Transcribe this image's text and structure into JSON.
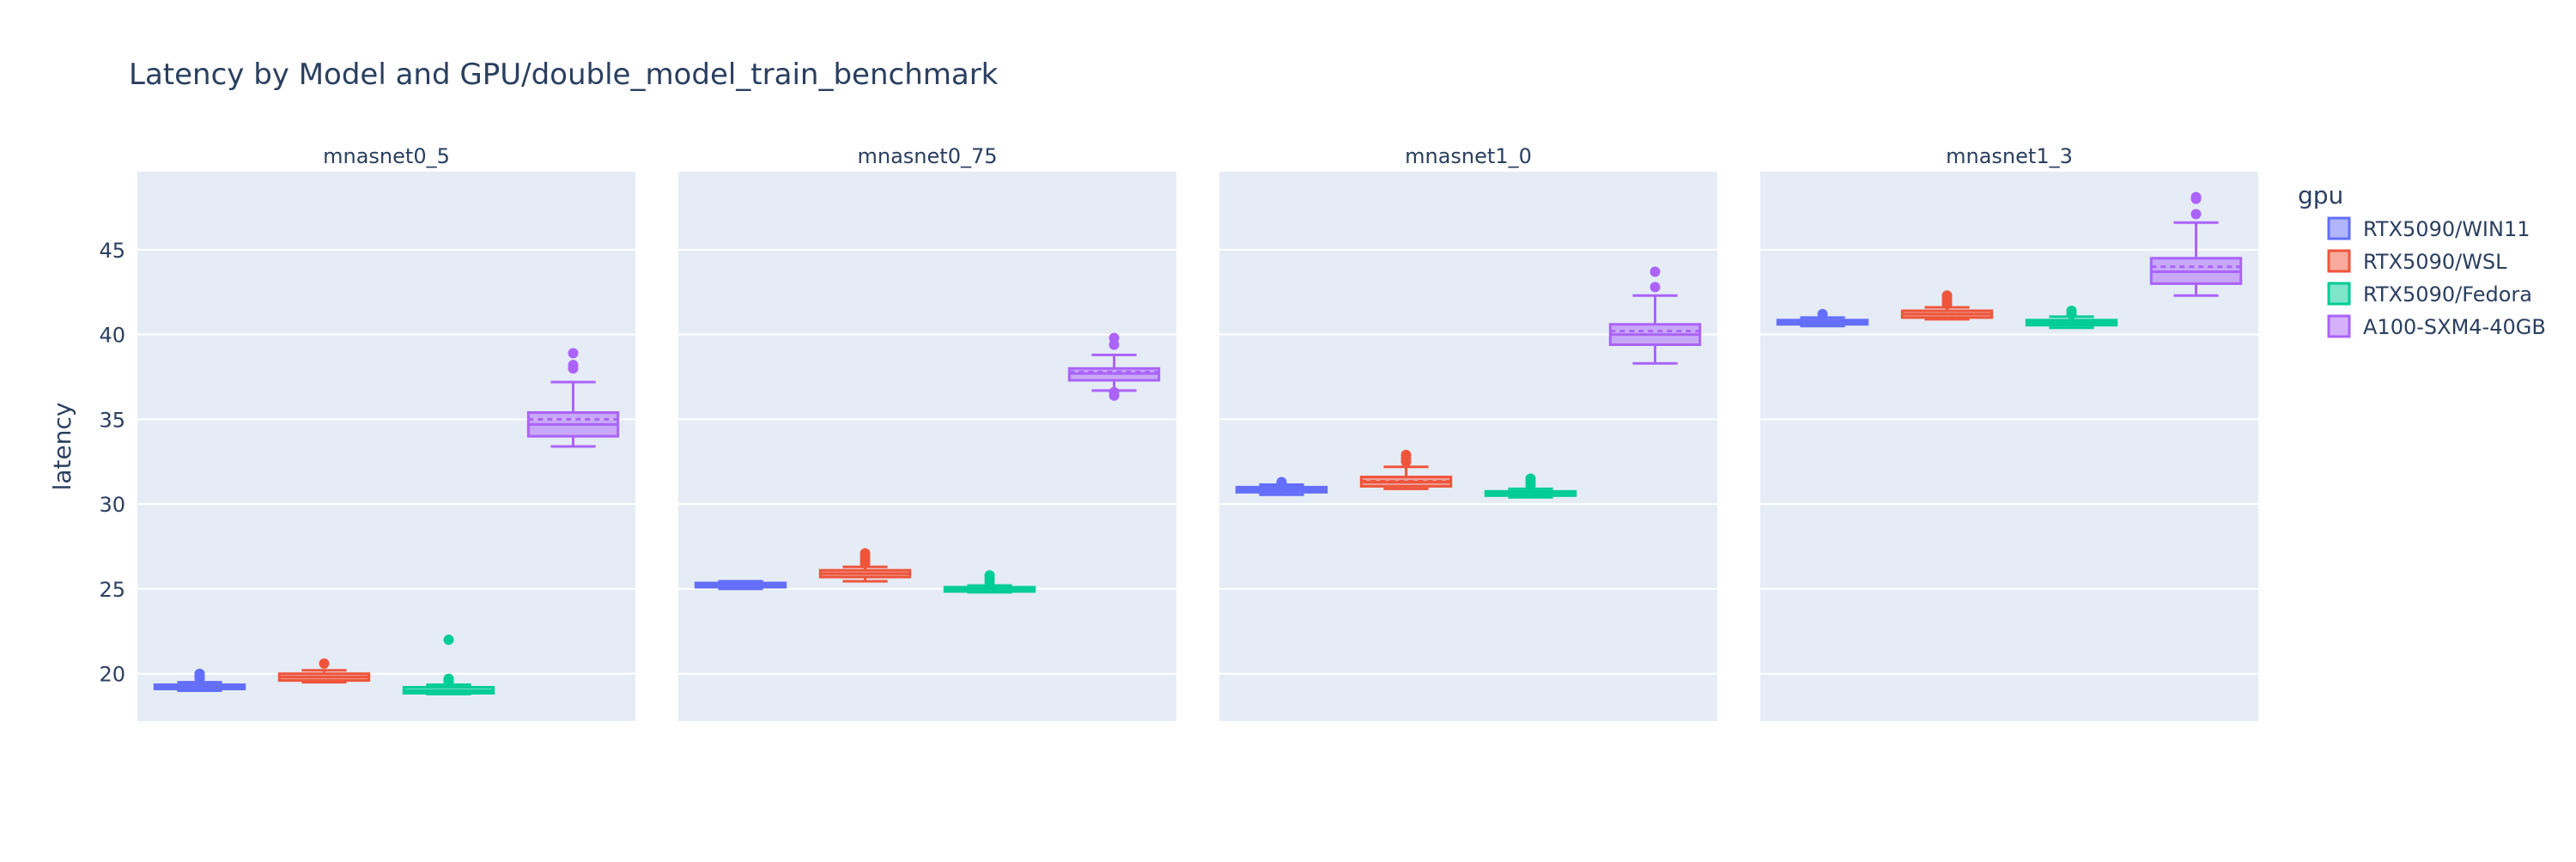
{
  "chart_data": {
    "type": "box",
    "title": "Latency by Model and GPU/double_model_train_benchmark",
    "ylabel": "latency",
    "xlabel": "",
    "ylim": [
      17.2,
      49.6
    ],
    "yticks": [
      20,
      25,
      30,
      35,
      40,
      45
    ],
    "grid": true,
    "legend": {
      "title": "gpu",
      "position": "right"
    },
    "series": [
      {
        "name": "RTX5090/WIN11",
        "color": "#636efa"
      },
      {
        "name": "RTX5090/WSL",
        "color": "#ef553b"
      },
      {
        "name": "RTX5090/Fedora",
        "color": "#00cc96"
      },
      {
        "name": "A100-SXM4-40GB",
        "color": "#ab63fa"
      }
    ],
    "panels": [
      {
        "title": "mnasnet0_5",
        "boxes": [
          {
            "series": "RTX5090/WIN11",
            "min": 19.0,
            "q1": 19.1,
            "median": 19.2,
            "mean": 19.2,
            "q3": 19.35,
            "max": 19.5,
            "outliers": [
              19.7,
              19.8,
              19.9,
              20.0
            ]
          },
          {
            "series": "RTX5090/WSL",
            "min": 19.5,
            "q1": 19.6,
            "median": 19.8,
            "mean": 19.8,
            "q3": 20.0,
            "max": 20.2,
            "outliers": [
              20.6
            ]
          },
          {
            "series": "RTX5090/Fedora",
            "min": 18.8,
            "q1": 18.85,
            "median": 19.0,
            "mean": 19.0,
            "q3": 19.2,
            "max": 19.35,
            "outliers": [
              19.5,
              19.6,
              19.7,
              22.0
            ]
          },
          {
            "series": "A100-SXM4-40GB",
            "min": 33.4,
            "q1": 34.0,
            "median": 34.7,
            "mean": 35.0,
            "q3": 35.4,
            "max": 37.2,
            "outliers": [
              38.0,
              38.2,
              38.9
            ]
          }
        ]
      },
      {
        "title": "mnasnet0_75",
        "boxes": [
          {
            "series": "RTX5090/WIN11",
            "min": 25.0,
            "q1": 25.1,
            "median": 25.2,
            "mean": 25.2,
            "q3": 25.35,
            "max": 25.45,
            "outliers": []
          },
          {
            "series": "RTX5090/WSL",
            "min": 25.45,
            "q1": 25.7,
            "median": 25.9,
            "mean": 25.9,
            "q3": 26.1,
            "max": 26.3,
            "outliers": [
              26.5,
              26.7,
              26.9,
              27.1
            ]
          },
          {
            "series": "RTX5090/Fedora",
            "min": 24.8,
            "q1": 24.85,
            "median": 25.0,
            "mean": 25.0,
            "q3": 25.1,
            "max": 25.2,
            "outliers": [
              25.4,
              25.6,
              25.8
            ]
          },
          {
            "series": "A100-SXM4-40GB",
            "min": 36.7,
            "q1": 37.3,
            "median": 37.7,
            "mean": 37.8,
            "q3": 38.0,
            "max": 38.8,
            "outliers": [
              36.4,
              36.6,
              39.4,
              39.8
            ]
          }
        ]
      },
      {
        "title": "mnasnet1_0",
        "boxes": [
          {
            "series": "RTX5090/WIN11",
            "min": 30.55,
            "q1": 30.7,
            "median": 30.85,
            "mean": 30.85,
            "q3": 31.0,
            "max": 31.15,
            "outliers": [
              31.3
            ]
          },
          {
            "series": "RTX5090/WSL",
            "min": 30.9,
            "q1": 31.05,
            "median": 31.3,
            "mean": 31.35,
            "q3": 31.6,
            "max": 32.2,
            "outliers": [
              32.5,
              32.7,
              32.9
            ]
          },
          {
            "series": "RTX5090/Fedora",
            "min": 30.4,
            "q1": 30.5,
            "median": 30.65,
            "mean": 30.65,
            "q3": 30.75,
            "max": 30.9,
            "outliers": [
              31.1,
              31.3,
              31.5
            ]
          },
          {
            "series": "A100-SXM4-40GB",
            "min": 38.3,
            "q1": 39.4,
            "median": 40.0,
            "mean": 40.2,
            "q3": 40.6,
            "max": 42.3,
            "outliers": [
              42.8,
              43.7
            ]
          }
        ]
      },
      {
        "title": "mnasnet1_3",
        "boxes": [
          {
            "series": "RTX5090/WIN11",
            "min": 40.5,
            "q1": 40.6,
            "median": 40.75,
            "mean": 40.75,
            "q3": 40.85,
            "max": 41.0,
            "outliers": [
              41.2
            ]
          },
          {
            "series": "RTX5090/WSL",
            "min": 40.9,
            "q1": 41.0,
            "median": 41.2,
            "mean": 41.2,
            "q3": 41.4,
            "max": 41.6,
            "outliers": [
              41.8,
              42.0,
              42.2,
              42.3
            ]
          },
          {
            "series": "RTX5090/Fedora",
            "min": 40.4,
            "q1": 40.55,
            "median": 40.7,
            "mean": 40.7,
            "q3": 40.85,
            "max": 41.05,
            "outliers": [
              41.2,
              41.4
            ]
          },
          {
            "series": "A100-SXM4-40GB",
            "min": 42.3,
            "q1": 43.0,
            "median": 43.7,
            "mean": 44.0,
            "q3": 44.5,
            "max": 46.6,
            "outliers": [
              47.1,
              48.0,
              48.1
            ]
          }
        ]
      }
    ]
  }
}
